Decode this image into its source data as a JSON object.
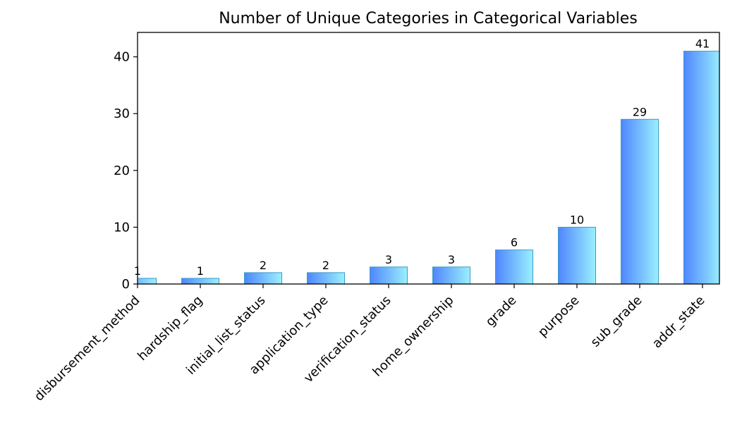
{
  "chart_data": {
    "type": "bar",
    "title": "Number of Unique Categories in Categorical Variables",
    "xlabel": "",
    "ylabel": "",
    "categories": [
      "disbursement_method",
      "hardship_flag",
      "initial_list_status",
      "application_type",
      "verification_status",
      "home_ownership",
      "grade",
      "purpose",
      "sub_grade",
      "addr_state"
    ],
    "values": [
      1,
      1,
      2,
      2,
      3,
      3,
      6,
      10,
      29,
      41
    ],
    "ylim": [
      0,
      44.3
    ],
    "yticks": [
      0,
      10,
      20,
      30,
      40
    ],
    "grid": false,
    "bar_gradient": [
      "#4f86ff",
      "#9af0ff"
    ],
    "bar_edge_color": "#3a9bc6"
  }
}
